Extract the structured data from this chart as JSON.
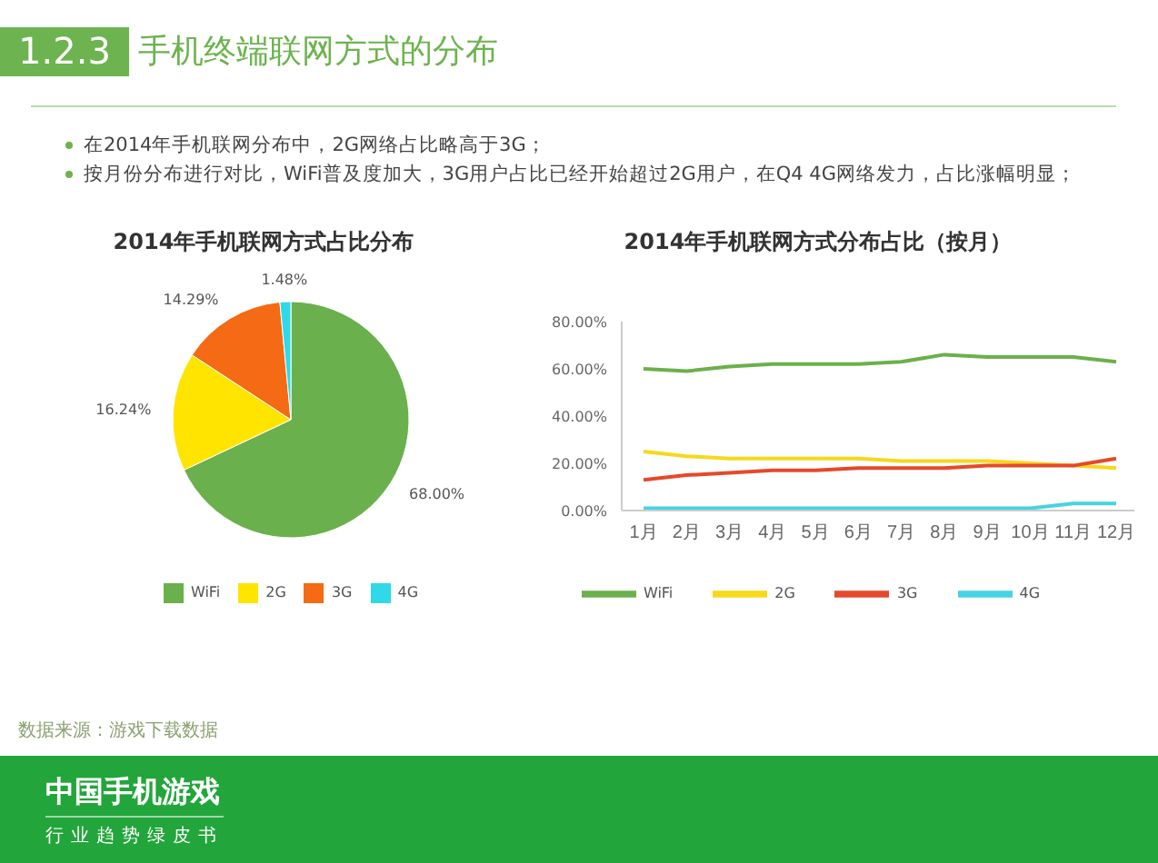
{
  "chart_data": [
    {
      "type": "other",
      "title": "1.2.3 手机终端联网方式的分布",
      "annotations": [
        "在2014年手机联网分布中，2G网络占比略高于3G；",
        "按月份分布进行对比，WiFi普及度加大，3G用户占比已经开始超过2G用户，在Q4 4G网络发力，占比涨幅明显；"
      ]
    },
    {
      "type": "pie",
      "title": "2014年手机联网方式占比分布",
      "categories": [
        "WiFi",
        "2G",
        "3G",
        "4G"
      ],
      "values": [
        68.0,
        16.24,
        14.29,
        1.48
      ],
      "colors": [
        "#6ab04c",
        "#ffe400",
        "#f56a14",
        "#2fd9e8"
      ],
      "value_labels": [
        "68.00%",
        "16.24%",
        "14.29%",
        "1.48%"
      ],
      "legend": "bottom"
    },
    {
      "type": "line",
      "title": "2014年手机联网方式分布占比（按月）",
      "categories": [
        "1月",
        "2月",
        "3月",
        "4月",
        "5月",
        "6月",
        "7月",
        "8月",
        "9月",
        "10月",
        "11月",
        "12月"
      ],
      "series": [
        {
          "name": "WiFi",
          "color": "#6bb04b",
          "values": [
            60,
            59,
            61,
            62,
            62,
            62,
            63,
            66,
            65,
            65,
            65,
            63
          ]
        },
        {
          "name": "2G",
          "color": "#f7d81b",
          "values": [
            25,
            23,
            22,
            22,
            22,
            22,
            21,
            21,
            21,
            20,
            19,
            18
          ]
        },
        {
          "name": "3G",
          "color": "#e5492b",
          "values": [
            13,
            15,
            16,
            17,
            17,
            18,
            18,
            18,
            19,
            19,
            19,
            22
          ]
        },
        {
          "name": "4G",
          "color": "#46d3e3",
          "values": [
            1,
            1,
            1,
            1,
            1,
            1,
            1,
            1,
            1,
            1,
            3,
            3
          ]
        }
      ],
      "ylim": [
        0,
        80
      ],
      "yticks": [
        {
          "value": 0,
          "label": "0.00%"
        },
        {
          "value": 20,
          "label": "20.00%"
        },
        {
          "value": 40,
          "label": "40.00%"
        },
        {
          "value": 60,
          "label": "60.00%"
        },
        {
          "value": 80,
          "label": "80.00%"
        }
      ],
      "marker": "none",
      "legend": "bottom"
    },
    {
      "type": "other",
      "title": "中国手机游戏",
      "subtitle": "行业趋势绿皮书",
      "annotations": [
        "数据来源：游戏下载数据"
      ]
    }
  ]
}
